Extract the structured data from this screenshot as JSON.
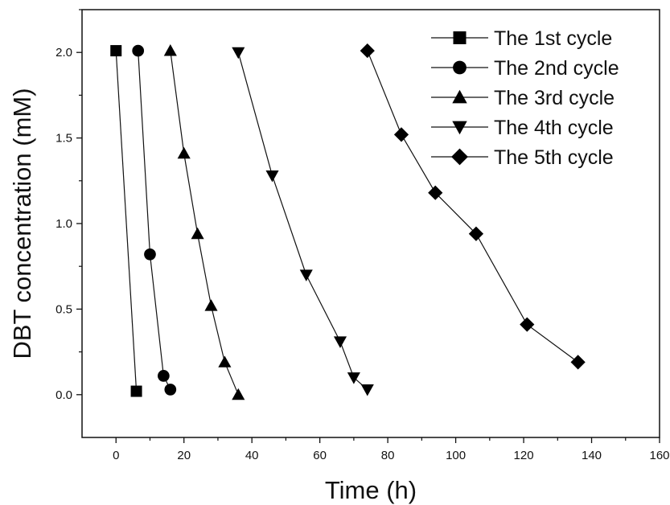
{
  "chart_data": {
    "type": "line",
    "xlabel": "Time (h)",
    "ylabel": "DBT concentration (mM)",
    "xlim": [
      -10,
      160
    ],
    "ylim": [
      -0.25,
      2.25
    ],
    "xticks": [
      0,
      20,
      40,
      60,
      80,
      100,
      120,
      140,
      160
    ],
    "yticks": [
      0.0,
      0.5,
      1.0,
      1.5,
      2.0
    ],
    "xtick_labels": [
      "0",
      "20",
      "40",
      "60",
      "80",
      "100",
      "120",
      "140",
      "160"
    ],
    "ytick_labels": [
      "0.0",
      "0.5",
      "1.0",
      "1.5",
      "2.0"
    ],
    "grid": false,
    "legend_position": "top-right",
    "series": [
      {
        "name": "The 1st cycle",
        "marker": "square",
        "x": [
          0,
          6
        ],
        "y": [
          2.01,
          0.02
        ]
      },
      {
        "name": "The 2nd cycle",
        "marker": "circle",
        "x": [
          6.5,
          10,
          14,
          16
        ],
        "y": [
          2.01,
          0.82,
          0.11,
          0.03
        ]
      },
      {
        "name": "The 3rd cycle",
        "marker": "triangle-up",
        "x": [
          16,
          20,
          24,
          28,
          32,
          36
        ],
        "y": [
          2.01,
          1.41,
          0.94,
          0.52,
          0.19,
          0.0
        ]
      },
      {
        "name": "The 4th cycle",
        "marker": "triangle-down",
        "x": [
          36,
          46,
          56,
          66,
          70,
          74
        ],
        "y": [
          2.0,
          1.28,
          0.7,
          0.31,
          0.1,
          0.03
        ]
      },
      {
        "name": "The 5th cycle",
        "marker": "diamond",
        "x": [
          74,
          84,
          94,
          106,
          121,
          136
        ],
        "y": [
          2.01,
          1.52,
          1.18,
          0.94,
          0.41,
          0.19
        ]
      }
    ]
  }
}
